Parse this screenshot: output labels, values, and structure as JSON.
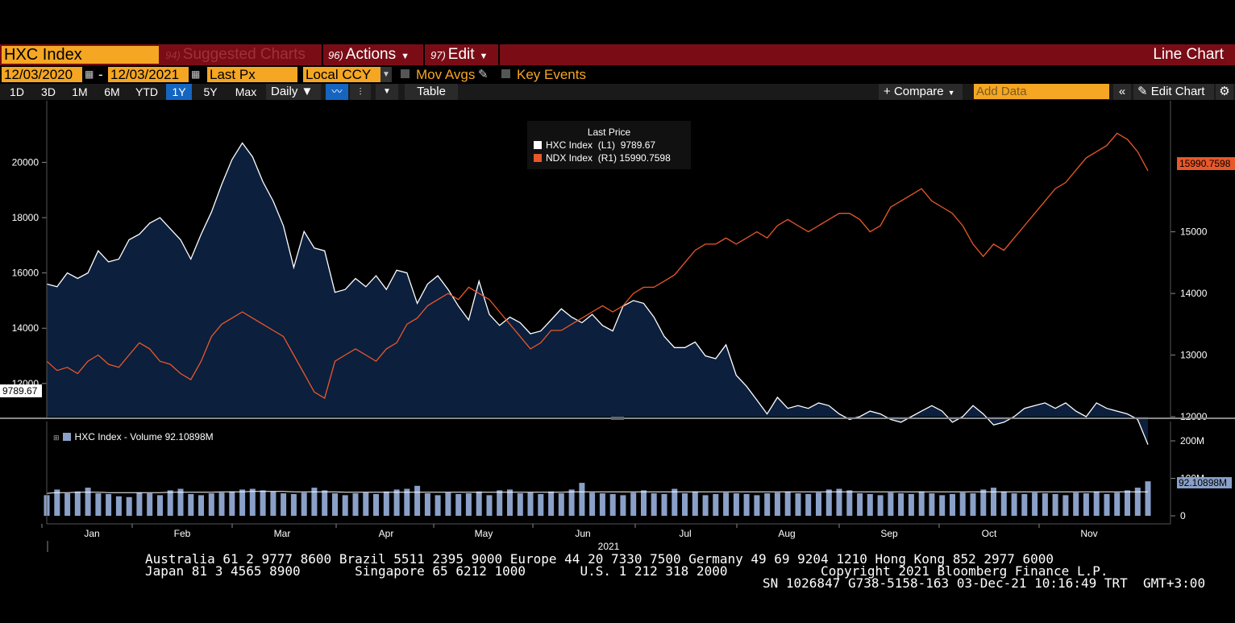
{
  "toolbar": {
    "ticker": "HXC Index",
    "suggested_num": "94)",
    "suggested_label": "Suggested Charts",
    "actions_num": "96)",
    "actions_label": "Actions",
    "edit_num": "97)",
    "edit_label": "Edit",
    "chart_type": "Line Chart"
  },
  "options": {
    "start_date": "12/03/2020",
    "date_sep": "-",
    "end_date": "12/03/2021",
    "price_field": "Last Px",
    "currency": "Local CCY",
    "mov_avgs": "Mov Avgs",
    "key_events": "Key Events"
  },
  "periods": [
    "1D",
    "3D",
    "1M",
    "6M",
    "YTD",
    "1Y",
    "5Y",
    "Max"
  ],
  "active_period": "1Y",
  "frequency": "Daily",
  "table_label": "Table",
  "compare_label": "Compare",
  "add_data_placeholder": "Add Data",
  "edit_chart_label": "Edit Chart",
  "legend": {
    "title": "Last Price",
    "row1": "HXC Index  (L1)  9789.67",
    "row2": "NDX Index  (R1) 15990.7598"
  },
  "volume_legend": "HXC Index - Volume 92.10898M",
  "colors": {
    "hxc": "#ffffff",
    "hxc_fill": "#0c1f3d",
    "ndx": "#e8582a",
    "volume": "#8aa0c8",
    "accent": "#f5a623",
    "topbar": "#7a0c16"
  },
  "chart_data": {
    "type": "line",
    "x_labels": [
      "Jan",
      "Feb",
      "Mar",
      "Apr",
      "May",
      "Jun",
      "Jul",
      "Aug",
      "Sep",
      "Oct",
      "Nov"
    ],
    "year_label": "2021",
    "left_axis": {
      "ticks": [
        12000,
        14000,
        16000,
        18000,
        20000
      ],
      "ylim": [
        10800,
        21500
      ]
    },
    "right_axis": {
      "ticks": [
        12000,
        13000,
        14000,
        15000
      ],
      "ylim": [
        12000,
        16800
      ]
    },
    "series": [
      {
        "name": "HXC Index",
        "axis": "left",
        "last": "9789.67",
        "values": [
          15600,
          15500,
          16000,
          15800,
          16000,
          16800,
          16400,
          16500,
          17200,
          17400,
          17800,
          18000,
          17600,
          17200,
          16500,
          17400,
          18200,
          19200,
          20100,
          20700,
          20200,
          19300,
          18600,
          17700,
          16200,
          17500,
          16900,
          16800,
          15300,
          15400,
          15800,
          15500,
          15900,
          15400,
          16100,
          16000,
          14900,
          15600,
          15900,
          15400,
          14800,
          14300,
          15700,
          14500,
          14100,
          14400,
          14200,
          13800,
          13900,
          14300,
          14700,
          14400,
          14200,
          14500,
          14100,
          13900,
          14800,
          15000,
          14900,
          14400,
          13700,
          13300,
          13300,
          13500,
          13000,
          12900,
          13400,
          12300,
          11900,
          11400,
          10900,
          11500,
          11100,
          11200,
          11100,
          11300,
          11200,
          10900,
          10700,
          10800,
          11000,
          10900,
          10700,
          10600,
          10800,
          11000,
          11200,
          11000,
          10600,
          10800,
          11200,
          10900,
          10500,
          10600,
          10800,
          11100,
          11200,
          11300,
          11100,
          11300,
          11000,
          10800,
          11300,
          11100,
          11000,
          10900,
          10700,
          9790
        ]
      },
      {
        "name": "NDX Index",
        "axis": "right",
        "last": "15990.7598",
        "values": [
          12900,
          12750,
          12800,
          12700,
          12900,
          13000,
          12850,
          12800,
          13000,
          13200,
          13100,
          12900,
          12850,
          12700,
          12600,
          12900,
          13300,
          13500,
          13600,
          13700,
          13600,
          13500,
          13400,
          13300,
          13000,
          12700,
          12400,
          12300,
          12900,
          13000,
          13100,
          13000,
          12900,
          13100,
          13200,
          13500,
          13600,
          13800,
          13900,
          14000,
          13900,
          14100,
          14000,
          13900,
          13700,
          13500,
          13300,
          13100,
          13200,
          13400,
          13400,
          13500,
          13600,
          13700,
          13800,
          13700,
          13800,
          14000,
          14100,
          14100,
          14200,
          14300,
          14500,
          14700,
          14800,
          14800,
          14900,
          14800,
          14900,
          15000,
          14900,
          15100,
          15200,
          15100,
          15000,
          15100,
          15200,
          15300,
          15300,
          15200,
          15000,
          15100,
          15400,
          15500,
          15600,
          15700,
          15500,
          15400,
          15300,
          15100,
          14800,
          14600,
          14800,
          14700,
          14900,
          15100,
          15300,
          15500,
          15700,
          15800,
          16000,
          16200,
          16300,
          16400,
          16600,
          16500,
          16300,
          15990
        ]
      },
      {
        "name": "HXC Index - Volume",
        "axis": "volume",
        "last": "92.10898M",
        "values": [
          55,
          70,
          60,
          65,
          75,
          60,
          58,
          52,
          50,
          62,
          60,
          55,
          68,
          72,
          58,
          55,
          60,
          62,
          65,
          70,
          72,
          68,
          65,
          60,
          58,
          62,
          75,
          68,
          60,
          55,
          60,
          62,
          58,
          65,
          70,
          72,
          80,
          60,
          55,
          62,
          58,
          60,
          65,
          55,
          68,
          70,
          60,
          62,
          58,
          65,
          60,
          70,
          88,
          62,
          60,
          58,
          55,
          62,
          68,
          60,
          58,
          72,
          60,
          65,
          55,
          58,
          62,
          60,
          58,
          55,
          60,
          62,
          65,
          60,
          58,
          62,
          70,
          72,
          68,
          60,
          58,
          55,
          62,
          60,
          58,
          65,
          60,
          55,
          58,
          62,
          60,
          70,
          75,
          65,
          60,
          58,
          62,
          60,
          58,
          55,
          62,
          60,
          65,
          58,
          62,
          68,
          75,
          92
        ]
      },
      {
        "name": "Volume MA",
        "axis": "volume",
        "values": [
          60,
          62,
          62,
          63,
          63,
          63,
          62,
          62,
          62,
          62,
          62,
          62,
          63,
          63,
          63,
          63,
          63,
          64,
          64,
          64,
          65,
          65,
          65,
          65,
          64,
          64,
          64,
          64,
          64,
          63,
          63,
          63,
          63,
          63,
          63,
          63,
          63,
          63,
          63,
          63,
          63,
          63,
          63,
          63,
          63,
          63,
          63,
          63,
          63,
          63,
          63,
          64,
          64,
          64,
          64,
          64,
          64,
          64,
          64,
          64,
          64,
          64,
          64,
          64,
          64,
          64,
          64,
          64,
          64,
          64,
          64,
          64,
          64,
          64,
          64,
          64,
          64,
          64,
          64,
          64,
          64,
          64,
          64,
          64,
          64,
          64,
          64,
          64,
          64,
          64,
          64,
          64,
          64,
          64,
          64,
          64,
          64,
          64,
          64,
          64,
          64,
          64,
          64,
          64,
          64,
          64,
          64,
          64
        ]
      }
    ],
    "volume_axis": {
      "ticks": [
        "0",
        "100M",
        "200M"
      ]
    }
  },
  "footer": {
    "line1": "Australia 61 2 9777 8600 Brazil 5511 2395 9000 Europe 44 20 7330 7500 Germany 49 69 9204 1210 Hong Kong 852 2977 6000",
    "line2": "Japan 81 3 4565 8900       Singapore 65 6212 1000       U.S. 1 212 318 2000            Copyright 2021 Bloomberg Finance L.P.",
    "line3": "SN 1026847 G738-5158-163 03-Dec-21 10:16:49 TRT  GMT+3:00"
  }
}
